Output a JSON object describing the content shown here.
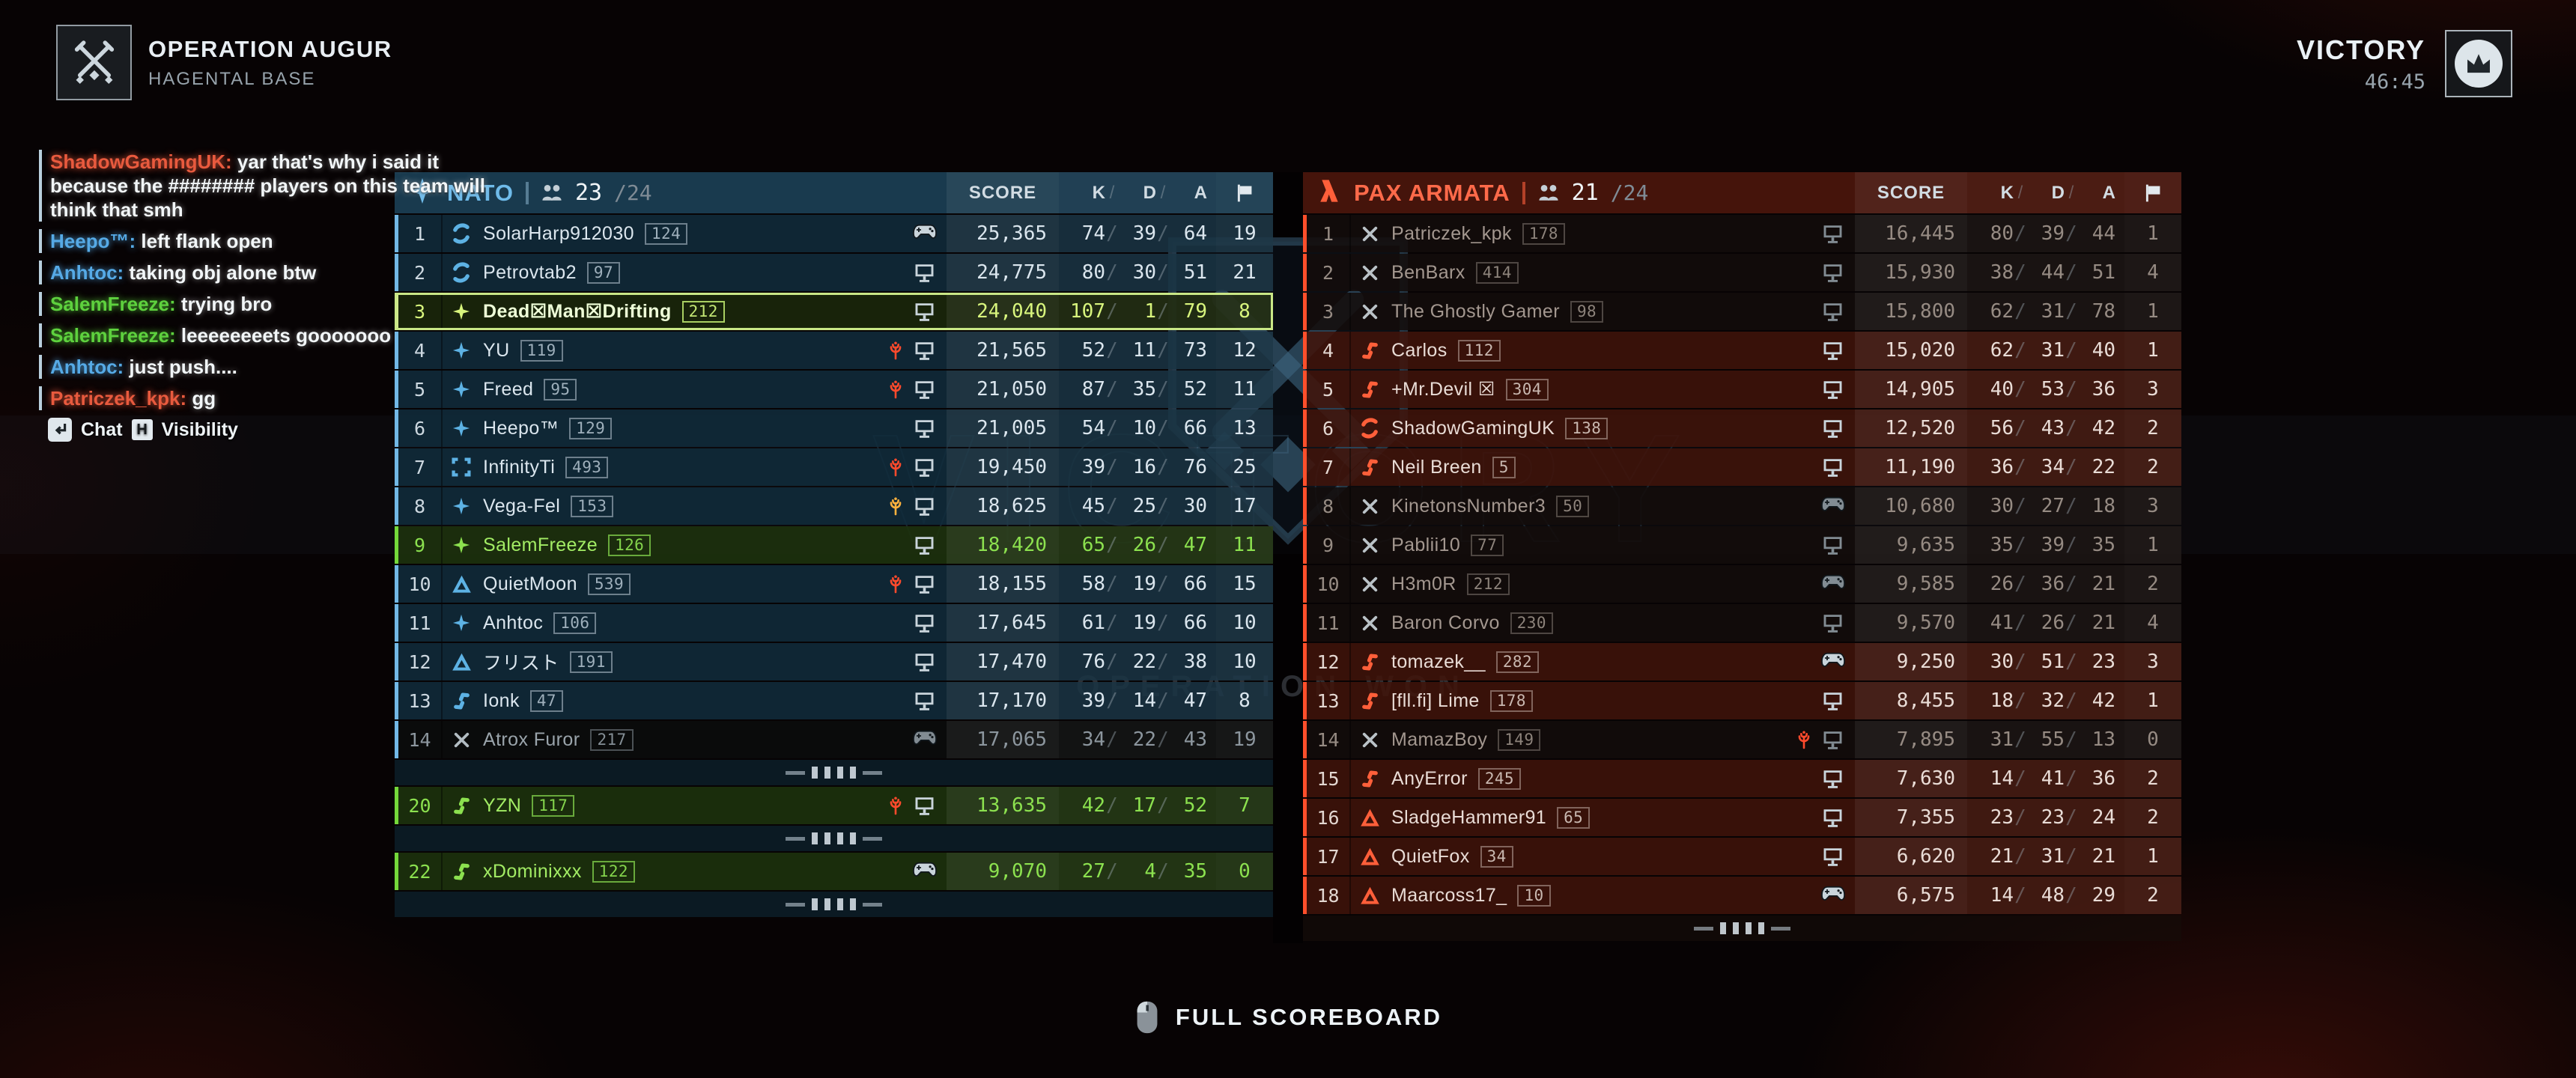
{
  "header": {
    "title": "OPERATION AUGUR",
    "subtitle": "HAGENTAL BASE"
  },
  "victory": {
    "result": "VICTORY",
    "time": "46:45"
  },
  "watermark": {
    "big_text": "VICTORY",
    "sub_text": "OPERATION WON"
  },
  "columns": {
    "score": "SCORE",
    "k": "K",
    "d": "D",
    "a": "A",
    "slash": "/"
  },
  "chat": {
    "messages": [
      {
        "name": "ShadowGamingUK",
        "team": "enemy",
        "text": "yar that's why i said it because the ######## players on this team will think that smh"
      },
      {
        "name": "Heepo™",
        "team": "ally",
        "text": "left flank open"
      },
      {
        "name": "Anhtoc",
        "team": "ally",
        "text": "taking obj alone btw"
      },
      {
        "name": "SalemFreeze",
        "team": "squad",
        "text": "trying bro"
      },
      {
        "name": "SalemFreeze",
        "team": "squad",
        "text": "leeeeeeeets gooooooo"
      },
      {
        "name": "Anhtoc",
        "team": "ally",
        "text": "just push...."
      },
      {
        "name": "Patriczek_kpk",
        "team": "enemy",
        "text": "gg"
      }
    ],
    "footer": {
      "chat_label": "Chat",
      "key": "H",
      "visibility_label": "Visibility"
    }
  },
  "colors": {
    "nato_accent": "#6fbbea",
    "pax_accent": "#ff5f3a",
    "squad_green": "#8ce14f",
    "self_green": "#d8f57d",
    "enemy_chat": "#e85a3e",
    "ally_chat": "#56aae6",
    "squad_chat": "#5ed13e"
  },
  "teams": [
    {
      "side": "nato",
      "name": "NATO",
      "count": "23",
      "max": "/24",
      "rows": [
        {
          "type": "player",
          "rank": "1",
          "cls": "medic",
          "name": "SolarHarp912030",
          "tag": "124",
          "status": "",
          "platform": "pad",
          "score": "25,365",
          "k": "74",
          "d": "39",
          "a": "64",
          "flags": "19",
          "state": "n"
        },
        {
          "type": "player",
          "rank": "2",
          "cls": "medic",
          "name": "Petrovtab2",
          "tag": "97",
          "status": "",
          "platform": "pc",
          "score": "24,775",
          "k": "80",
          "d": "30",
          "a": "51",
          "flags": "21",
          "state": "n"
        },
        {
          "type": "player",
          "rank": "3",
          "cls": "assault",
          "name": "Dead☒Man☒Drifting",
          "tag": "212",
          "status": "",
          "platform": "pc",
          "score": "24,040",
          "k": "107",
          "d": "1",
          "a": "79",
          "flags": "8",
          "state": "self"
        },
        {
          "type": "player",
          "rank": "4",
          "cls": "assault",
          "name": "YU",
          "tag": "119",
          "status": "red",
          "platform": "pc",
          "score": "21,565",
          "k": "52",
          "d": "11",
          "a": "73",
          "flags": "12",
          "state": "n"
        },
        {
          "type": "player",
          "rank": "5",
          "cls": "assault",
          "name": "Freed",
          "tag": "95",
          "status": "red",
          "platform": "pc",
          "score": "21,050",
          "k": "87",
          "d": "35",
          "a": "52",
          "flags": "11",
          "state": "n"
        },
        {
          "type": "player",
          "rank": "6",
          "cls": "assault",
          "name": "Heepo™",
          "tag": "129",
          "status": "",
          "platform": "pc",
          "score": "21,005",
          "k": "54",
          "d": "10",
          "a": "66",
          "flags": "13",
          "state": "n"
        },
        {
          "type": "player",
          "rank": "7",
          "cls": "recon",
          "name": "InfinityTi",
          "tag": "493",
          "status": "red",
          "platform": "pc",
          "score": "19,450",
          "k": "39",
          "d": "16",
          "a": "76",
          "flags": "25",
          "state": "n"
        },
        {
          "type": "player",
          "rank": "8",
          "cls": "assault",
          "name": "Vega-Fel",
          "tag": "153",
          "status": "yellow",
          "platform": "pc",
          "score": "18,625",
          "k": "45",
          "d": "25",
          "a": "30",
          "flags": "17",
          "state": "n"
        },
        {
          "type": "player",
          "rank": "9",
          "cls": "assault",
          "name": "SalemFreeze",
          "tag": "126",
          "status": "",
          "platform": "pc",
          "score": "18,420",
          "k": "65",
          "d": "26",
          "a": "47",
          "flags": "11",
          "state": "squad"
        },
        {
          "type": "player",
          "rank": "10",
          "cls": "triangle",
          "name": "QuietMoon",
          "tag": "539",
          "status": "red",
          "platform": "pc",
          "score": "18,155",
          "k": "58",
          "d": "19",
          "a": "66",
          "flags": "15",
          "state": "n"
        },
        {
          "type": "player",
          "rank": "11",
          "cls": "assault",
          "name": "Anhtoc",
          "tag": "106",
          "status": "",
          "platform": "pc",
          "score": "17,645",
          "k": "61",
          "d": "19",
          "a": "66",
          "flags": "10",
          "state": "n"
        },
        {
          "type": "player",
          "rank": "12",
          "cls": "triangle",
          "name": "フリスト",
          "tag": "191",
          "status": "",
          "platform": "pc",
          "score": "17,470",
          "k": "76",
          "d": "22",
          "a": "38",
          "flags": "10",
          "state": "n"
        },
        {
          "type": "player",
          "rank": "13",
          "cls": "lightning",
          "name": "Ionk",
          "tag": "47",
          "status": "",
          "platform": "pc",
          "score": "17,170",
          "k": "39",
          "d": "14",
          "a": "47",
          "flags": "8",
          "state": "n"
        },
        {
          "type": "player",
          "rank": "14",
          "cls": "deadx",
          "name": "Atrox Furor",
          "tag": "217",
          "status": "",
          "platform": "pad",
          "score": "17,065",
          "k": "34",
          "d": "22",
          "a": "43",
          "flags": "19",
          "state": "dead"
        },
        {
          "type": "gap"
        },
        {
          "type": "player",
          "rank": "20",
          "cls": "lightning",
          "name": "YZN",
          "tag": "117",
          "status": "red",
          "platform": "pc",
          "score": "13,635",
          "k": "42",
          "d": "17",
          "a": "52",
          "flags": "7",
          "state": "squad"
        },
        {
          "type": "gap"
        },
        {
          "type": "player",
          "rank": "22",
          "cls": "lightning",
          "name": "xDominixxx",
          "tag": "122",
          "status": "",
          "platform": "pad",
          "score": "9,070",
          "k": "27",
          "d": "4",
          "a": "35",
          "flags": "0",
          "state": "squad"
        },
        {
          "type": "gap"
        }
      ]
    },
    {
      "side": "pax",
      "name": "PAX ARMATA",
      "count": "21",
      "max": "/24",
      "rows": [
        {
          "type": "player",
          "rank": "1",
          "cls": "deadx",
          "name": "Patriczek_kpk",
          "tag": "178",
          "status": "",
          "platform": "pc",
          "score": "16,445",
          "k": "80",
          "d": "39",
          "a": "44",
          "flags": "1",
          "state": "dead"
        },
        {
          "type": "player",
          "rank": "2",
          "cls": "deadx",
          "name": "BenBarx",
          "tag": "414",
          "status": "",
          "platform": "pc",
          "score": "15,930",
          "k": "38",
          "d": "44",
          "a": "51",
          "flags": "4",
          "state": "dead"
        },
        {
          "type": "player",
          "rank": "3",
          "cls": "deadx",
          "name": "The Ghostly Gamer",
          "tag": "98",
          "status": "",
          "platform": "pc",
          "score": "15,800",
          "k": "62",
          "d": "31",
          "a": "78",
          "flags": "1",
          "state": "dead"
        },
        {
          "type": "player",
          "rank": "4",
          "cls": "lightning",
          "name": "Carlos",
          "tag": "112",
          "status": "",
          "platform": "pc",
          "score": "15,020",
          "k": "62",
          "d": "31",
          "a": "40",
          "flags": "1",
          "state": "n"
        },
        {
          "type": "player",
          "rank": "5",
          "cls": "lightning",
          "name": "+Mr.Devil ☒",
          "tag": "304",
          "status": "",
          "platform": "pc",
          "score": "14,905",
          "k": "40",
          "d": "53",
          "a": "36",
          "flags": "3",
          "state": "n"
        },
        {
          "type": "player",
          "rank": "6",
          "cls": "medic",
          "name": "ShadowGamingUK",
          "tag": "138",
          "status": "",
          "platform": "pc",
          "score": "12,520",
          "k": "56",
          "d": "43",
          "a": "42",
          "flags": "2",
          "state": "n"
        },
        {
          "type": "player",
          "rank": "7",
          "cls": "lightning",
          "name": "Neil Breen",
          "tag": "5",
          "status": "",
          "platform": "pc",
          "score": "11,190",
          "k": "36",
          "d": "34",
          "a": "22",
          "flags": "2",
          "state": "n"
        },
        {
          "type": "player",
          "rank": "8",
          "cls": "deadx",
          "name": "KinetonsNumber3",
          "tag": "50",
          "status": "",
          "platform": "pad",
          "score": "10,680",
          "k": "30",
          "d": "27",
          "a": "18",
          "flags": "3",
          "state": "dead"
        },
        {
          "type": "player",
          "rank": "9",
          "cls": "deadx",
          "name": "Pablii10",
          "tag": "77",
          "status": "",
          "platform": "pc",
          "score": "9,635",
          "k": "35",
          "d": "39",
          "a": "35",
          "flags": "1",
          "state": "dead"
        },
        {
          "type": "player",
          "rank": "10",
          "cls": "deadx",
          "name": "H3m0R",
          "tag": "212",
          "status": "",
          "platform": "pad",
          "score": "9,585",
          "k": "26",
          "d": "36",
          "a": "21",
          "flags": "2",
          "state": "dead"
        },
        {
          "type": "player",
          "rank": "11",
          "cls": "deadx",
          "name": "Baron Corvo",
          "tag": "230",
          "status": "",
          "platform": "pc",
          "score": "9,570",
          "k": "41",
          "d": "26",
          "a": "21",
          "flags": "4",
          "state": "dead"
        },
        {
          "type": "player",
          "rank": "12",
          "cls": "lightning",
          "name": "tomazek__",
          "tag": "282",
          "status": "",
          "platform": "pad",
          "score": "9,250",
          "k": "30",
          "d": "51",
          "a": "23",
          "flags": "3",
          "state": "n"
        },
        {
          "type": "player",
          "rank": "13",
          "cls": "lightning",
          "name": "[fll.fi] Lime",
          "tag": "178",
          "status": "",
          "platform": "pc",
          "score": "8,455",
          "k": "18",
          "d": "32",
          "a": "42",
          "flags": "1",
          "state": "n"
        },
        {
          "type": "player",
          "rank": "14",
          "cls": "deadx",
          "name": "MamazBoy",
          "tag": "149",
          "status": "red",
          "platform": "pc",
          "score": "7,895",
          "k": "31",
          "d": "55",
          "a": "13",
          "flags": "0",
          "state": "dead"
        },
        {
          "type": "player",
          "rank": "15",
          "cls": "lightning",
          "name": "AnyError",
          "tag": "245",
          "status": "",
          "platform": "pc",
          "score": "7,630",
          "k": "14",
          "d": "41",
          "a": "36",
          "flags": "2",
          "state": "n"
        },
        {
          "type": "player",
          "rank": "16",
          "cls": "triangle",
          "name": "SladgeHammer91",
          "tag": "65",
          "status": "",
          "platform": "pc",
          "score": "7,355",
          "k": "23",
          "d": "23",
          "a": "24",
          "flags": "2",
          "state": "n"
        },
        {
          "type": "player",
          "rank": "17",
          "cls": "triangle",
          "name": "QuietFox",
          "tag": "34",
          "status": "",
          "platform": "pc",
          "score": "6,620",
          "k": "21",
          "d": "31",
          "a": "21",
          "flags": "1",
          "state": "n"
        },
        {
          "type": "player",
          "rank": "18",
          "cls": "triangle",
          "name": "Maarcoss17_",
          "tag": "10",
          "status": "",
          "platform": "pad",
          "score": "6,575",
          "k": "14",
          "d": "48",
          "a": "29",
          "flags": "2",
          "state": "n"
        },
        {
          "type": "gap"
        }
      ]
    }
  ],
  "footer": {
    "label": "FULL SCOREBOARD"
  }
}
